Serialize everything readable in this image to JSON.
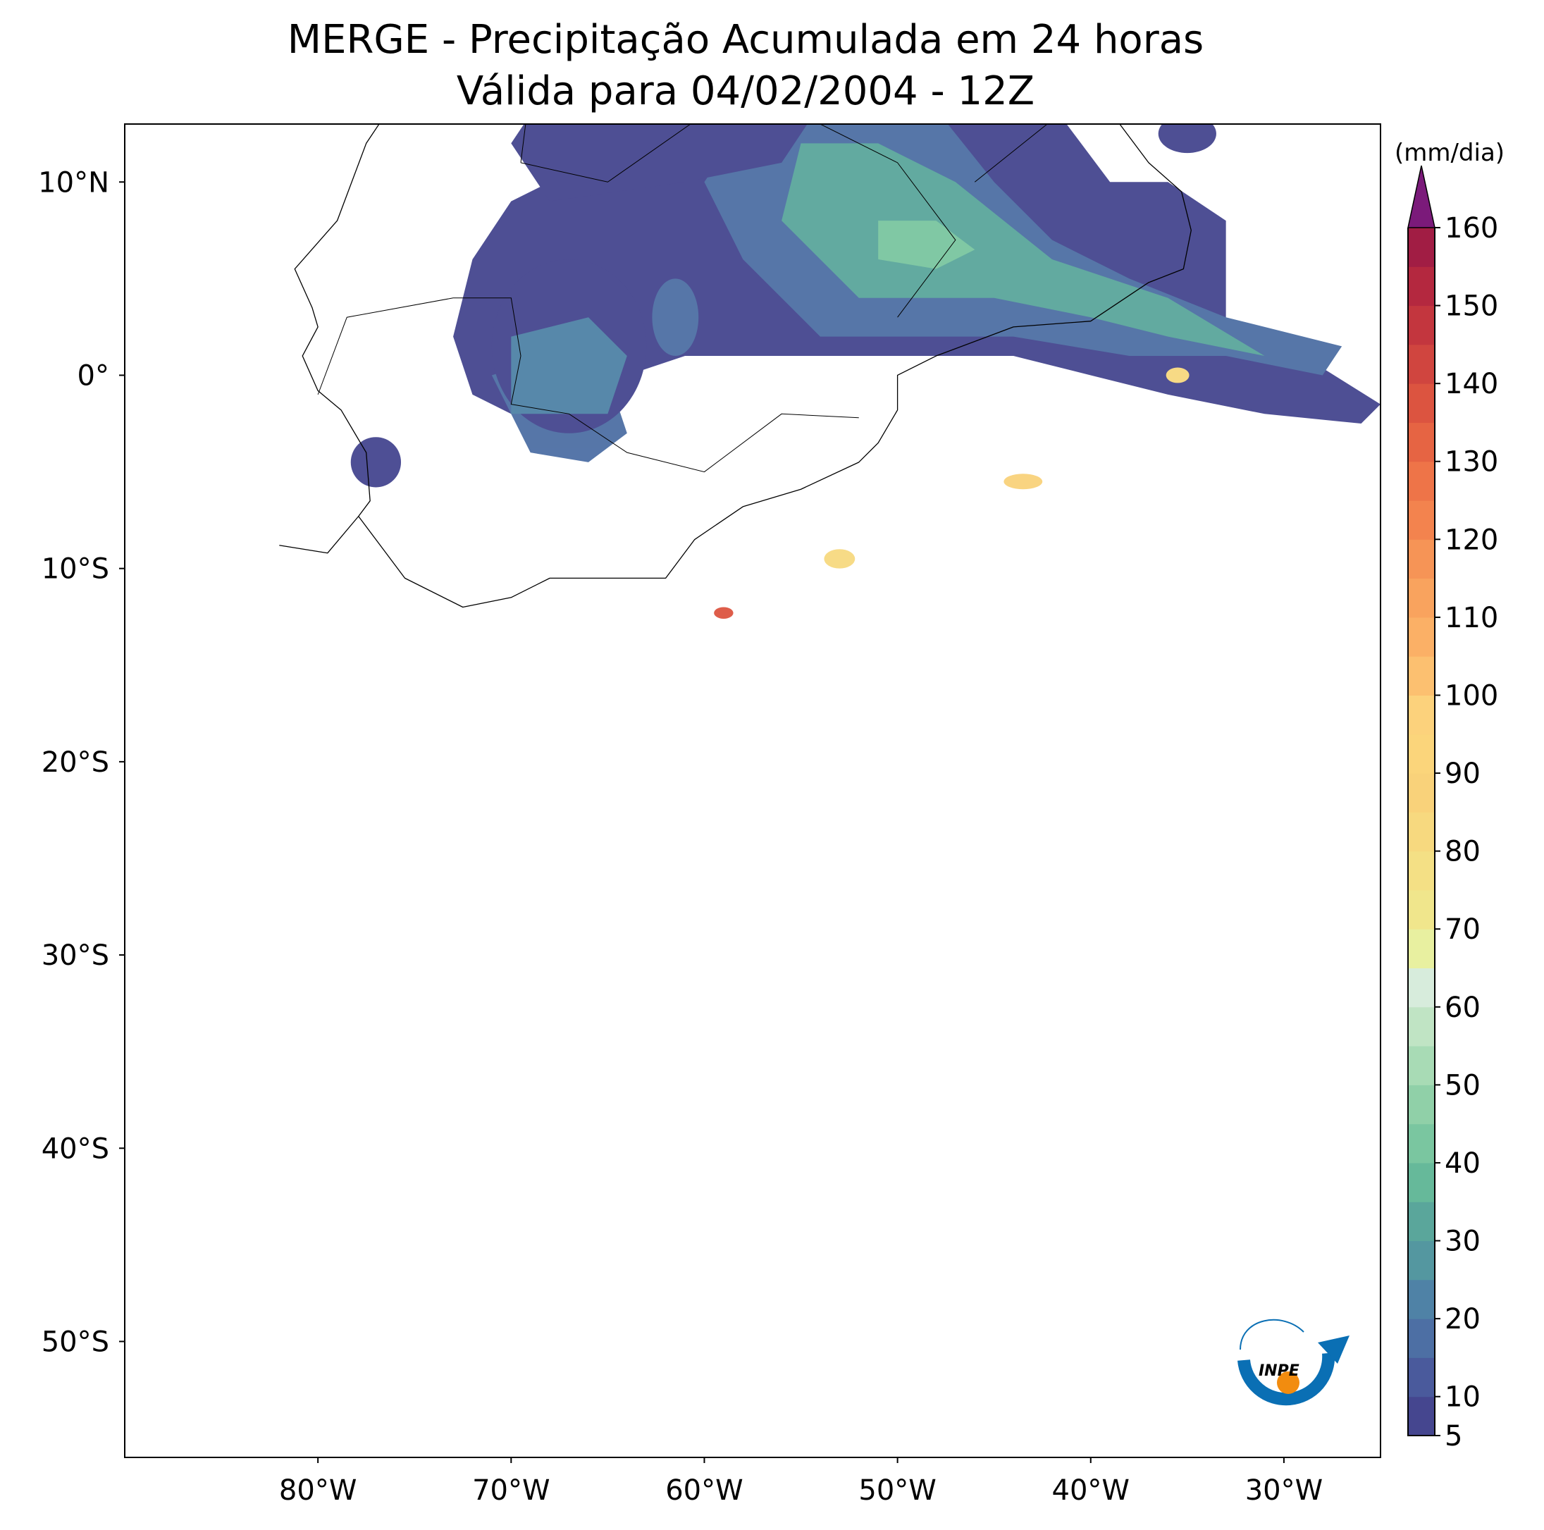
{
  "title": [
    "MERGE - Precipitação Acumulada em 24 horas",
    "Válida para 04/02/2004 - 12Z"
  ],
  "map": {
    "xlim": [
      -90,
      -25
    ],
    "ylim": [
      -56,
      13
    ],
    "xticks": [
      {
        "value": -80,
        "label": "80°W"
      },
      {
        "value": -70,
        "label": "70°W"
      },
      {
        "value": -60,
        "label": "60°W"
      },
      {
        "value": -50,
        "label": "50°W"
      },
      {
        "value": -40,
        "label": "40°W"
      },
      {
        "value": -30,
        "label": "30°W"
      }
    ],
    "yticks": [
      {
        "value": 10,
        "label": "10°N"
      },
      {
        "value": 0,
        "label": "0°"
      },
      {
        "value": -10,
        "label": "10°S"
      },
      {
        "value": -20,
        "label": "20°S"
      },
      {
        "value": -30,
        "label": "30°S"
      },
      {
        "value": -40,
        "label": "40°S"
      },
      {
        "value": -50,
        "label": "50°S"
      }
    ]
  },
  "colorbar": {
    "label": "(mm/dia)",
    "levels": [
      5,
      10,
      15,
      20,
      25,
      30,
      35,
      40,
      45,
      50,
      55,
      60,
      65,
      70,
      75,
      80,
      85,
      90,
      95,
      100,
      105,
      110,
      115,
      120,
      125,
      130,
      135,
      140,
      145,
      150,
      155,
      160
    ],
    "colors": [
      "#45468f",
      "#4a5a9c",
      "#4d6fa4",
      "#4f82a6",
      "#5497a0",
      "#5aa69b",
      "#66b99a",
      "#7ac6a0",
      "#90d0a8",
      "#a8dbb5",
      "#c0e4c4",
      "#d7ecdc",
      "#e8f0a0",
      "#f0e68c",
      "#f4e085",
      "#f7d97f",
      "#f9d27a",
      "#fbd57b",
      "#fcd27c",
      "#fcc070",
      "#fbb066",
      "#f9a35e",
      "#f69456",
      "#f3834e",
      "#ee7448",
      "#e66443",
      "#dc5440",
      "#d0453f",
      "#c3363e",
      "#b4283f",
      "#a11d44"
    ],
    "extend_color": "#7b1a7a",
    "ticks": [
      5,
      10,
      20,
      30,
      40,
      50,
      60,
      70,
      80,
      90,
      100,
      110,
      120,
      130,
      140,
      150,
      160
    ]
  },
  "logo_text": "INPE"
}
